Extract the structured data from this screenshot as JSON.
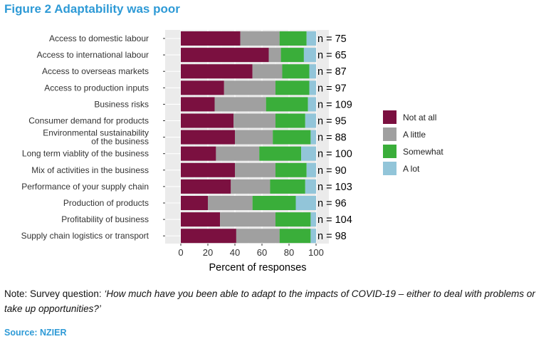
{
  "figure_title": "Figure 2 Adaptability was poor",
  "note": {
    "prefix": "Note: Survey question: ",
    "question": "‘How much have you been able to adapt to the impacts of COVID-19 – either to deal with problems or take up opportunities?’"
  },
  "source": "Source: NZIER",
  "chart_data": {
    "type": "bar",
    "orientation": "horizontal",
    "stacked": true,
    "xlabel": "Percent of responses",
    "ylabel": "",
    "xlim": [
      0,
      100
    ],
    "xticks": [
      0,
      20,
      40,
      60,
      80,
      100
    ],
    "grid": true,
    "legend_position": "right",
    "categories": [
      "Access to domestic labour",
      "Access to international labour",
      "Access to overseas markets",
      "Access to production inputs",
      "Business risks",
      "Consumer demand for products",
      "Environmental sustainability of the business",
      "Long term viablity of the business",
      "Mix of activities in the business",
      "Performance of your supply chain",
      "Production of products",
      "Profitability of business",
      "Supply chain logistics or transport"
    ],
    "n_labels": [
      "n = 75",
      "n = 65",
      "n = 87",
      "n = 97",
      "n = 109",
      "n = 95",
      "n = 88",
      "n = 100",
      "n = 90",
      "n = 103",
      "n = 96",
      "n = 104",
      "n = 98"
    ],
    "series": [
      {
        "name": "Not at all",
        "color": "#7b1040",
        "values": [
          44,
          65,
          53,
          32,
          25,
          39,
          40,
          26,
          40,
          37,
          20,
          29,
          41
        ]
      },
      {
        "name": "A little",
        "color": "#a0a0a0",
        "values": [
          29,
          9,
          22,
          38,
          38,
          31,
          28,
          32,
          30,
          29,
          33,
          41,
          32
        ]
      },
      {
        "name": "Somewhat",
        "color": "#3aae3a",
        "values": [
          20,
          17,
          20,
          25,
          31,
          22,
          28,
          31,
          23,
          26,
          32,
          26,
          23
        ]
      },
      {
        "name": "A lot",
        "color": "#92c5d9",
        "values": [
          7,
          9,
          5,
          5,
          6,
          8,
          4,
          11,
          7,
          8,
          15,
          4,
          4
        ]
      }
    ]
  }
}
